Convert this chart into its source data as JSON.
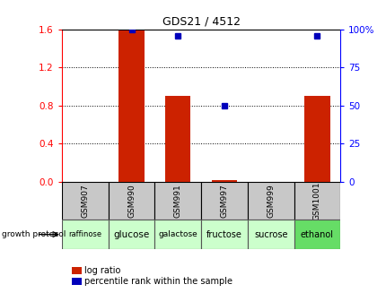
{
  "title": "GDS21 / 4512",
  "samples": [
    "GSM907",
    "GSM990",
    "GSM991",
    "GSM997",
    "GSM999",
    "GSM1001"
  ],
  "protocols": [
    "raffinose",
    "glucose",
    "galactose",
    "fructose",
    "sucrose",
    "ethanol"
  ],
  "log_ratio": [
    0.0,
    1.585,
    0.9,
    0.02,
    0.0,
    0.9
  ],
  "percentile_rank": [
    null,
    100,
    96,
    50,
    null,
    96
  ],
  "ylim_left": [
    0,
    1.6
  ],
  "ylim_right": [
    0,
    100
  ],
  "yticks_left": [
    0,
    0.4,
    0.8,
    1.2,
    1.6
  ],
  "yticks_right": [
    0,
    25,
    50,
    75,
    100
  ],
  "bar_color": "#cc2200",
  "dot_color": "#0000bb",
  "bar_width": 0.55,
  "sample_cell_color": "#c8c8c8",
  "protocol_colors": [
    "#ccffcc",
    "#ccffcc",
    "#ccffcc",
    "#ccffcc",
    "#ccffcc",
    "#66dd66"
  ],
  "bg_color": "#ffffff",
  "legend_log_ratio": "log ratio",
  "legend_percentile": "percentile rank within the sample"
}
